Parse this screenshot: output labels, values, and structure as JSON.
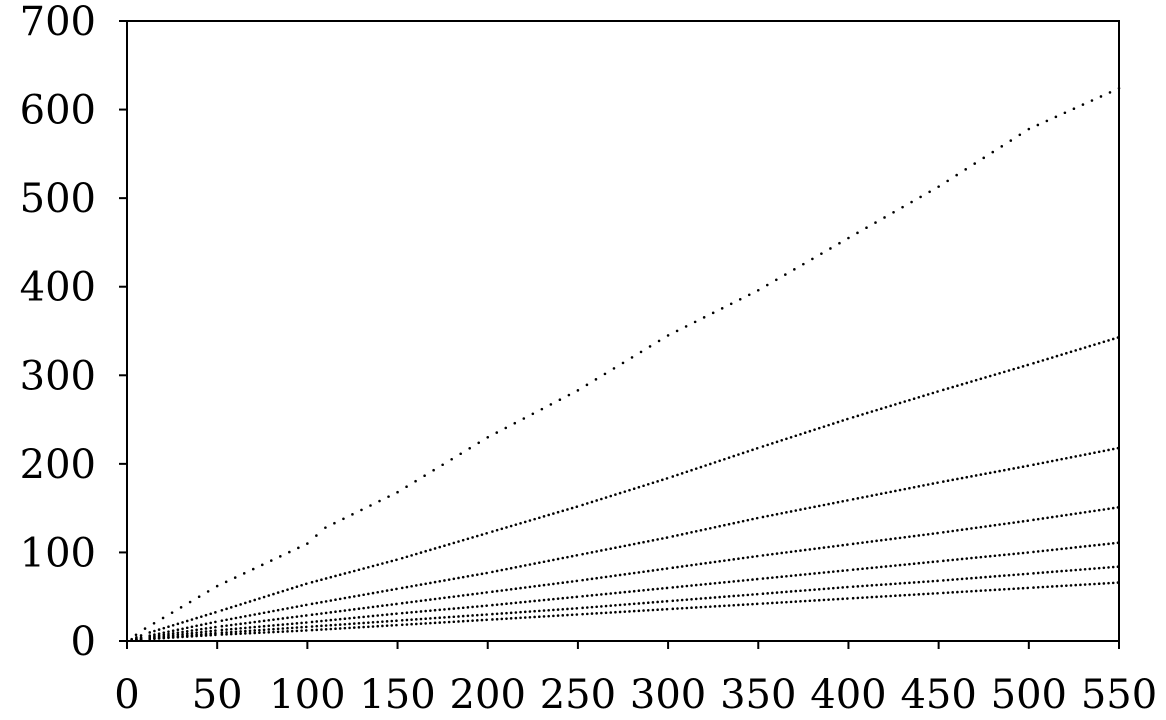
{
  "chart_data": {
    "type": "scatter",
    "title": "",
    "xlabel": "",
    "ylabel": "",
    "xlim": [
      0,
      550
    ],
    "ylim": [
      0,
      700
    ],
    "x_ticks": [
      0,
      50,
      100,
      150,
      200,
      250,
      300,
      350,
      400,
      450,
      500,
      550
    ],
    "y_ticks": [
      0,
      100,
      200,
      300,
      400,
      500,
      600,
      700
    ],
    "x_tick_labels": [
      "0",
      "50",
      "100",
      "150",
      "200",
      "250",
      "300",
      "350",
      "400",
      "450",
      "500",
      "550"
    ],
    "y_tick_labels": [
      "0",
      "100",
      "200",
      "300",
      "400",
      "500",
      "600",
      "700"
    ],
    "grid": false,
    "legend": "none",
    "marker_color": "#000000",
    "series": [
      {
        "x": [
          10,
          50,
          100,
          110,
          150,
          200,
          250,
          300,
          350,
          400,
          450,
          500,
          550
        ],
        "y": [
          14,
          62,
          110,
          128,
          168,
          230,
          283,
          345,
          396,
          455,
          513,
          578,
          624
        ]
      },
      {
        "x": [
          10,
          50,
          100,
          150,
          200,
          250,
          300,
          350,
          400,
          450,
          500,
          550
        ],
        "y": [
          8,
          33,
          65,
          92,
          122,
          152,
          184,
          218,
          251,
          282,
          312,
          343
        ]
      },
      {
        "x": [
          10,
          50,
          100,
          150,
          200,
          250,
          300,
          350,
          400,
          450,
          500,
          550
        ],
        "y": [
          5,
          22,
          41,
          59,
          77,
          97,
          117,
          139,
          159,
          179,
          198,
          218
        ]
      },
      {
        "x": [
          10,
          50,
          100,
          150,
          200,
          250,
          300,
          350,
          400,
          450,
          500,
          550
        ],
        "y": [
          4,
          16,
          29,
          42,
          55,
          68,
          82,
          96,
          109,
          122,
          136,
          151
        ]
      },
      {
        "x": [
          10,
          50,
          100,
          150,
          200,
          250,
          300,
          350,
          400,
          450,
          500,
          550
        ],
        "y": [
          3,
          12,
          21,
          31,
          40,
          50,
          60,
          70,
          80,
          90,
          100,
          111
        ]
      },
      {
        "x": [
          10,
          50,
          100,
          150,
          200,
          250,
          300,
          350,
          400,
          450,
          500,
          550
        ],
        "y": [
          2,
          9,
          16,
          23,
          30,
          37,
          45,
          53,
          61,
          68,
          76,
          84
        ]
      },
      {
        "x": [
          10,
          50,
          100,
          150,
          200,
          250,
          300,
          350,
          400,
          450,
          500,
          550
        ],
        "y": [
          2,
          7,
          12,
          18,
          24,
          30,
          36,
          42,
          48,
          54,
          60,
          66
        ]
      }
    ]
  }
}
